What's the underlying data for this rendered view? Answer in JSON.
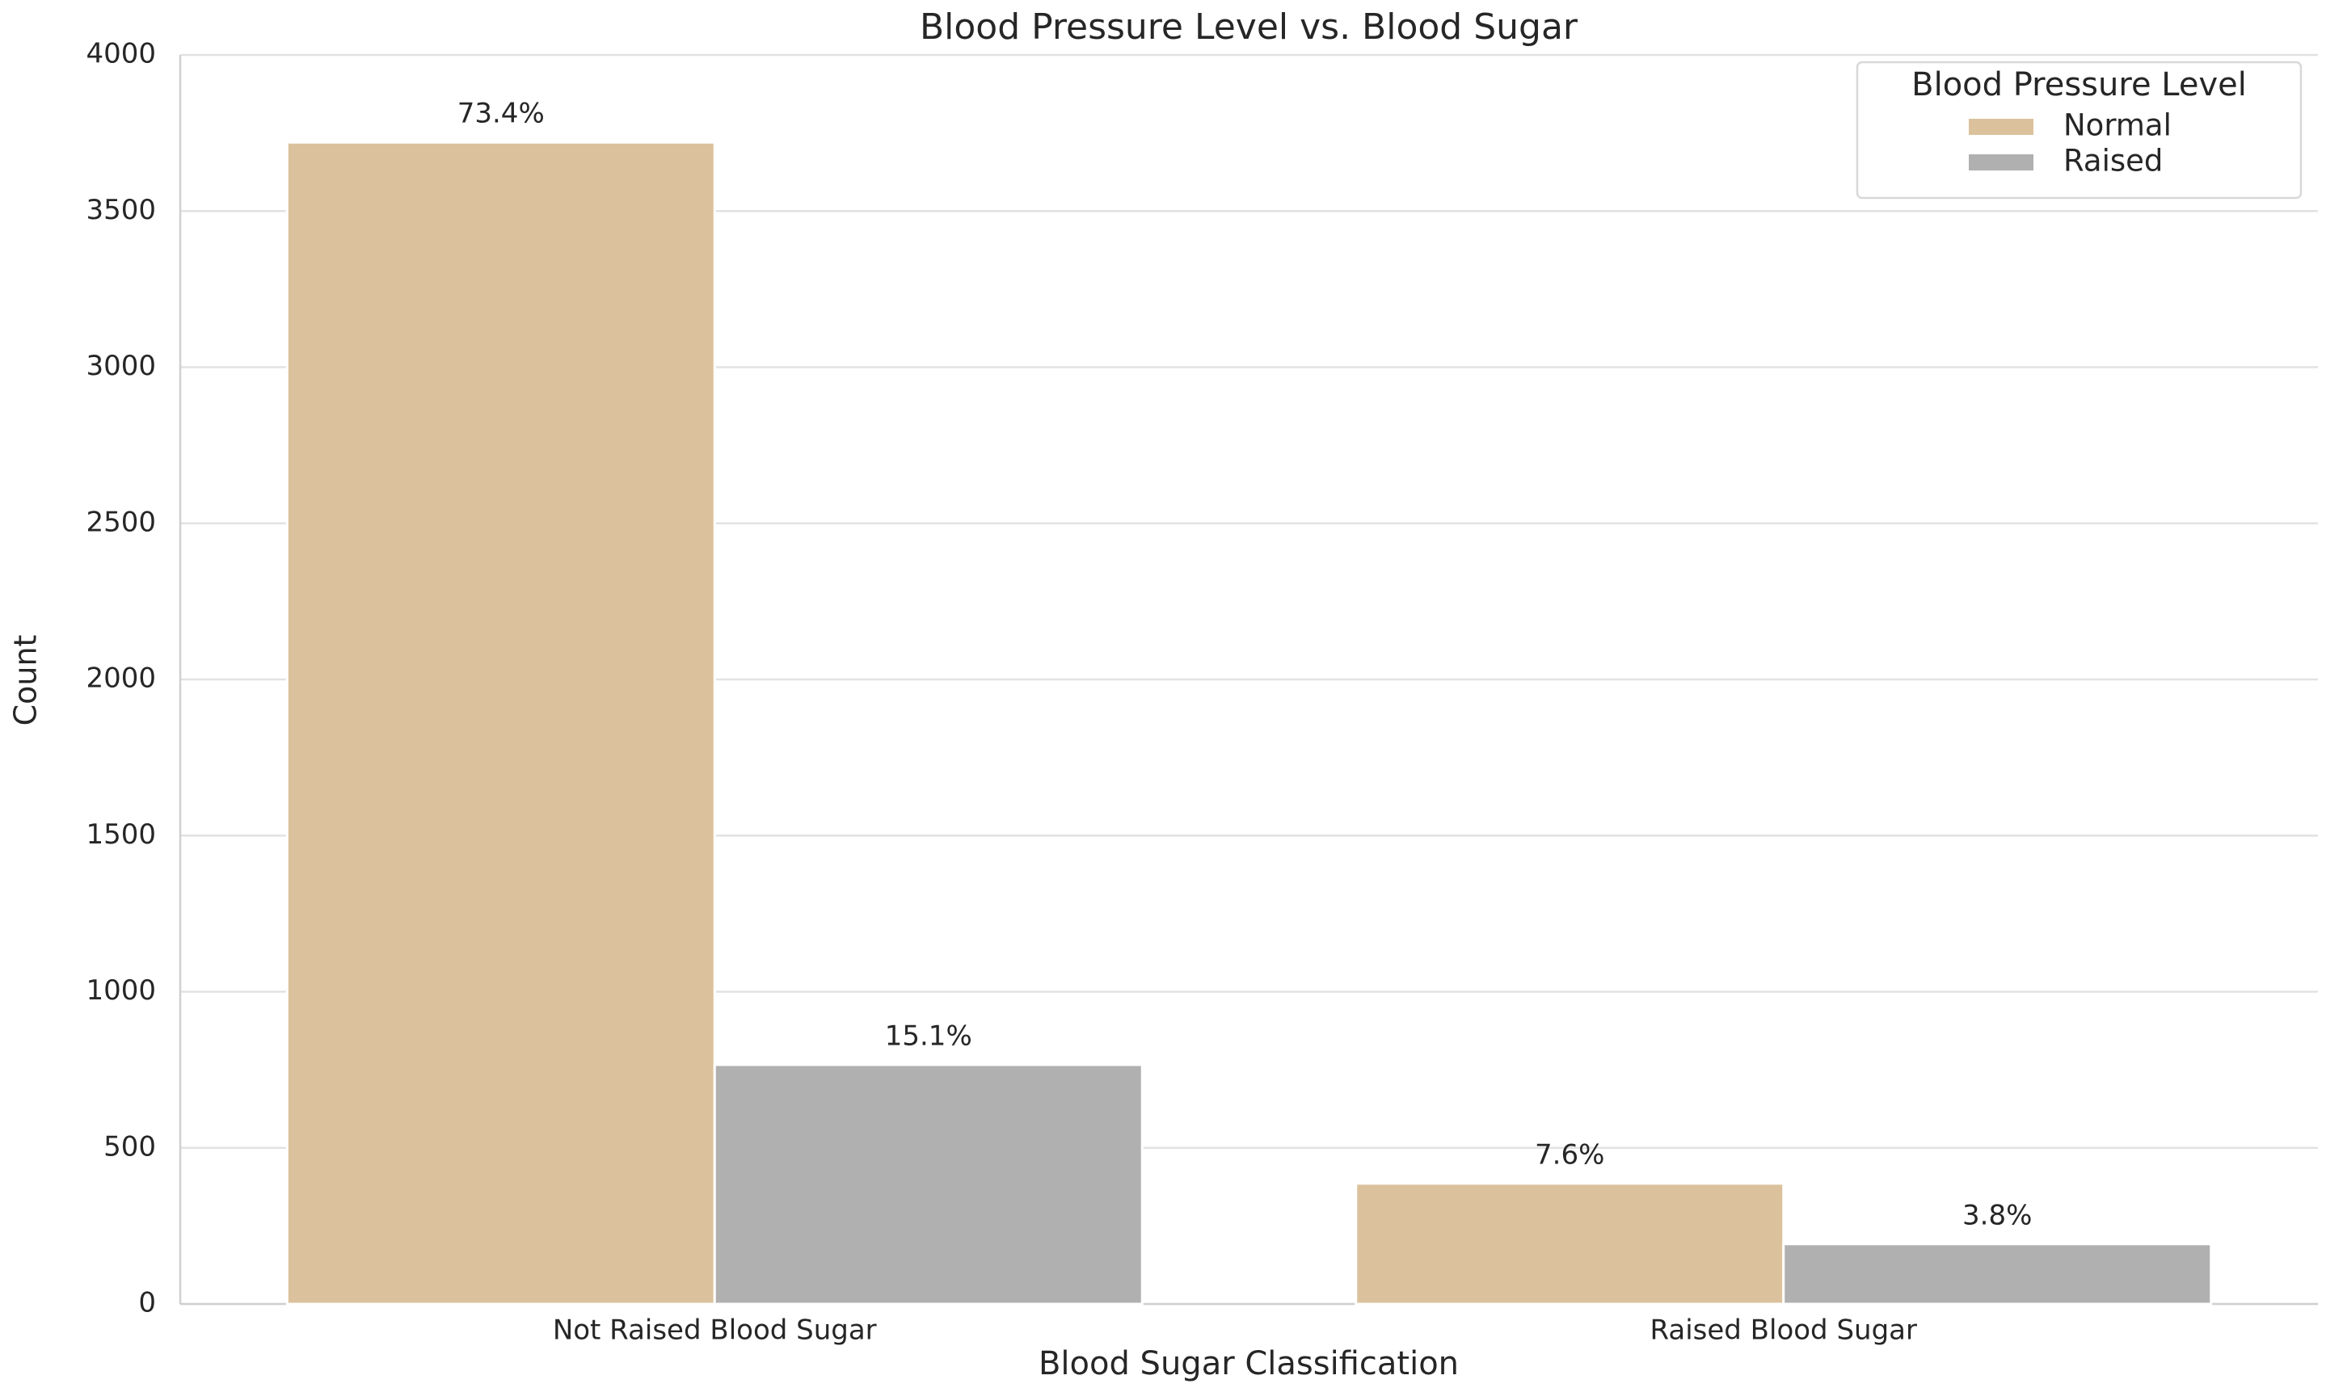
{
  "chart_data": {
    "type": "bar",
    "title": "Blood Pressure Level vs. Blood Sugar",
    "x_label": "Blood Sugar Classification",
    "y_label": "Count",
    "categories": [
      "Not Raised Blood Sugar",
      "Raised Blood Sugar"
    ],
    "series": [
      {
        "name": "Normal",
        "color": "#dbc29c",
        "values": [
          3720,
          386
        ],
        "value_labels": [
          "73.4%",
          "7.6%"
        ]
      },
      {
        "name": "Raised",
        "color": "#b0b0b0",
        "values": [
          766,
          192
        ],
        "value_labels": [
          "15.1%",
          "3.8%"
        ]
      }
    ],
    "legend_title": "Blood Pressure Level",
    "legend_position": "upper right",
    "ylim": [
      0,
      4000
    ],
    "yticks": [
      0,
      500,
      1000,
      1500,
      2000,
      2500,
      3000,
      3500,
      4000
    ],
    "grid": true
  }
}
